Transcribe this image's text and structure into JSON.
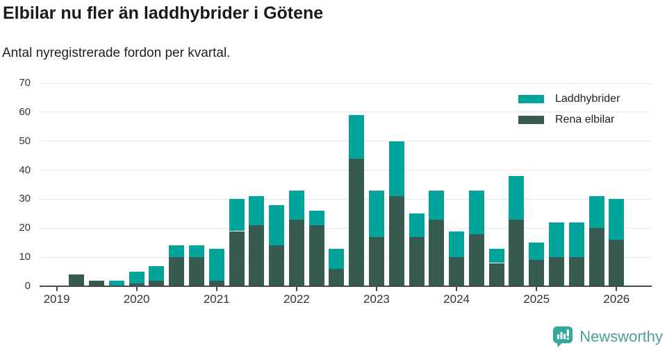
{
  "header": {
    "title": "Elbilar nu fler än laddhybrider i Götene",
    "subtitle": "Antal nyregistrerade fordon per kvartal."
  },
  "branding": {
    "name": "Newsworthy",
    "icon": "mini-bar-chart-speech-bubble",
    "icon_color": "#35a79c",
    "text_color": "#47a09a"
  },
  "chart_data": {
    "type": "bar",
    "stacked": true,
    "title": "Elbilar nu fler än laddhybrider i Götene",
    "subtitle": "Antal nyregistrerade fordon per kvartal.",
    "x": [
      "2019 Q1",
      "2019 Q2",
      "2019 Q3",
      "2019 Q4",
      "2020 Q1",
      "2020 Q2",
      "2020 Q3",
      "2020 Q4",
      "2021 Q1",
      "2021 Q2",
      "2021 Q3",
      "2021 Q4",
      "2022 Q1",
      "2022 Q2",
      "2022 Q3",
      "2022 Q4",
      "2023 Q1",
      "2023 Q2",
      "2023 Q3",
      "2023 Q4",
      "2024 Q1",
      "2024 Q2",
      "2024 Q3",
      "2024 Q4",
      "2025 Q1",
      "2025 Q2",
      "2025 Q3",
      "2025 Q4",
      "2026 Q1"
    ],
    "series": [
      {
        "name": "Rena elbilar",
        "color": "#375a51",
        "values": [
          0,
          4,
          2,
          0,
          1,
          2,
          10,
          10,
          2,
          19,
          21,
          14,
          23,
          21,
          6,
          44,
          17,
          31,
          17,
          23,
          10,
          18,
          8,
          23,
          9,
          10,
          10,
          20,
          16
        ]
      },
      {
        "name": "Laddhybrider",
        "color": "#00a49b",
        "values": [
          0,
          0,
          0,
          2,
          4,
          5,
          4,
          4,
          11,
          11,
          10,
          14,
          10,
          5,
          7,
          15,
          16,
          19,
          8,
          10,
          9,
          15,
          5,
          15,
          6,
          12,
          12,
          11,
          14
        ]
      }
    ],
    "legend": [
      {
        "label": "Laddhybrider",
        "color": "#00a49b"
      },
      {
        "label": "Rena elbilar",
        "color": "#375a51"
      }
    ],
    "legend_position": "top-right",
    "xticks": [
      "2019",
      "2020",
      "2021",
      "2022",
      "2023",
      "2024",
      "2025",
      "2026"
    ],
    "yticks": [
      0,
      10,
      20,
      30,
      40,
      50,
      60,
      70
    ],
    "ylim": [
      0,
      70
    ],
    "xlabel": "",
    "ylabel": "",
    "grid": "horizontal"
  }
}
